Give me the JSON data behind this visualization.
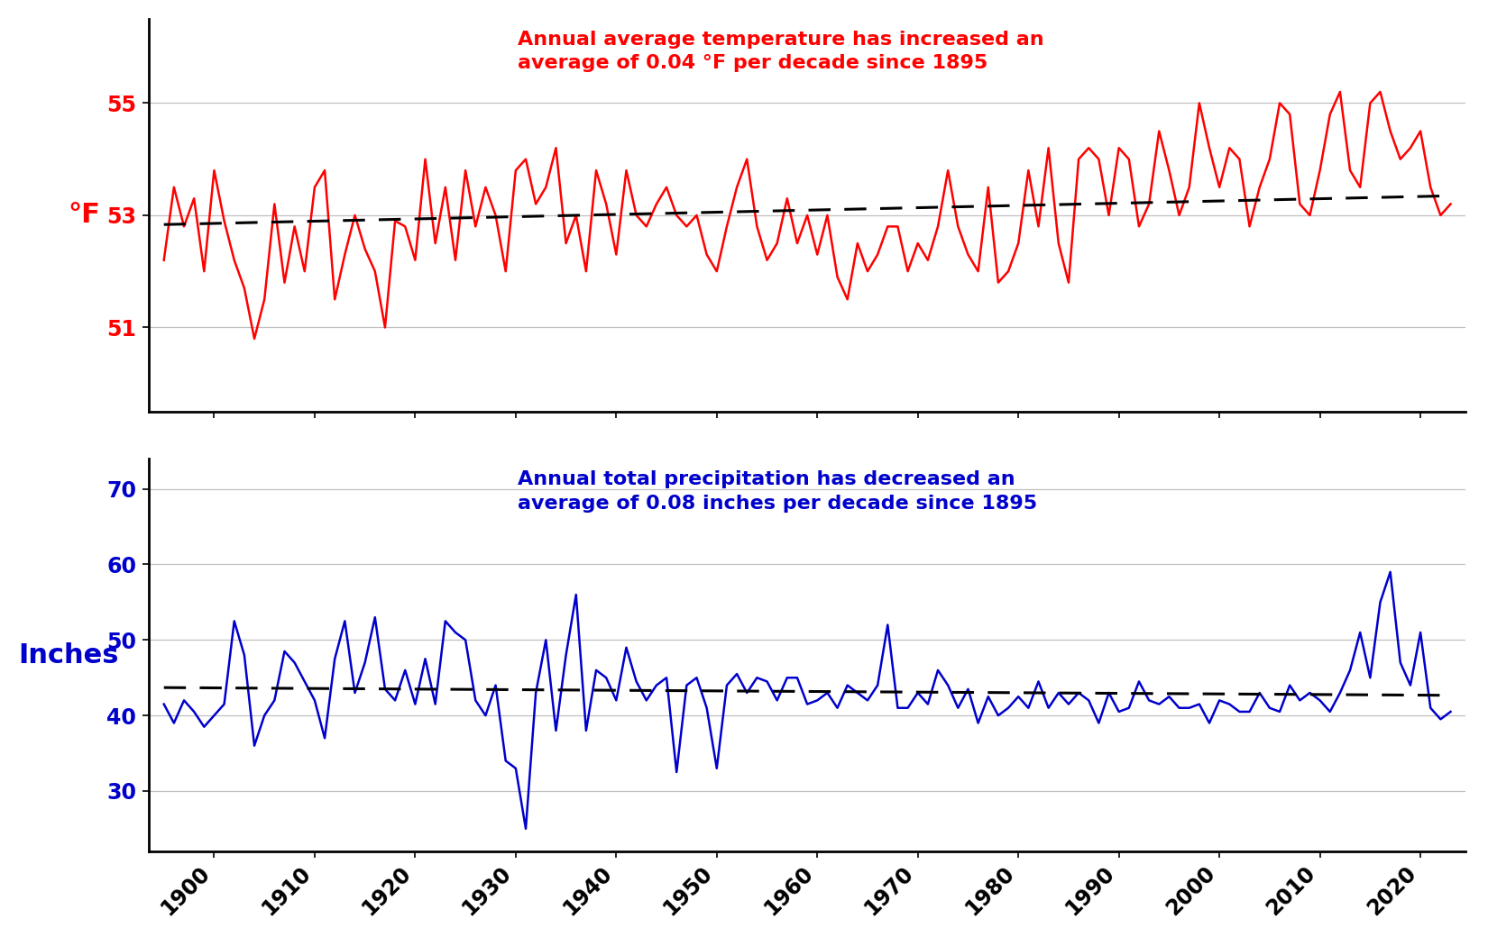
{
  "years": [
    1895,
    1896,
    1897,
    1898,
    1899,
    1900,
    1901,
    1902,
    1903,
    1904,
    1905,
    1906,
    1907,
    1908,
    1909,
    1910,
    1911,
    1912,
    1913,
    1914,
    1915,
    1916,
    1917,
    1918,
    1919,
    1920,
    1921,
    1922,
    1923,
    1924,
    1925,
    1926,
    1927,
    1928,
    1929,
    1930,
    1931,
    1932,
    1933,
    1934,
    1935,
    1936,
    1937,
    1938,
    1939,
    1940,
    1941,
    1942,
    1943,
    1944,
    1945,
    1946,
    1947,
    1948,
    1949,
    1950,
    1951,
    1952,
    1953,
    1954,
    1955,
    1956,
    1957,
    1958,
    1959,
    1960,
    1961,
    1962,
    1963,
    1964,
    1965,
    1966,
    1967,
    1968,
    1969,
    1970,
    1971,
    1972,
    1973,
    1974,
    1975,
    1976,
    1977,
    1978,
    1979,
    1980,
    1981,
    1982,
    1983,
    1984,
    1985,
    1986,
    1987,
    1988,
    1989,
    1990,
    1991,
    1992,
    1993,
    1994,
    1995,
    1996,
    1997,
    1998,
    1999,
    2000,
    2001,
    2002,
    2003,
    2004,
    2005,
    2006,
    2007,
    2008,
    2009,
    2010,
    2011,
    2012,
    2013,
    2014,
    2015,
    2016,
    2017,
    2018,
    2019,
    2020,
    2021,
    2022,
    2023
  ],
  "temp": [
    52.2,
    53.5,
    52.8,
    53.3,
    52.0,
    53.8,
    52.9,
    52.2,
    51.7,
    50.8,
    51.5,
    53.2,
    51.8,
    52.8,
    52.0,
    53.5,
    53.8,
    51.5,
    52.3,
    53.0,
    52.4,
    52.0,
    51.0,
    52.9,
    52.8,
    52.2,
    54.0,
    52.5,
    53.5,
    52.2,
    53.8,
    52.8,
    53.5,
    53.0,
    52.0,
    53.8,
    54.0,
    53.2,
    53.5,
    54.2,
    52.5,
    53.0,
    52.0,
    53.8,
    53.2,
    52.3,
    53.8,
    53.0,
    52.8,
    53.2,
    53.5,
    53.0,
    52.8,
    53.0,
    52.3,
    52.0,
    52.8,
    53.5,
    54.0,
    52.8,
    52.2,
    52.5,
    53.3,
    52.5,
    53.0,
    52.3,
    53.0,
    51.9,
    51.5,
    52.5,
    52.0,
    52.3,
    52.8,
    52.8,
    52.0,
    52.5,
    52.2,
    52.8,
    53.8,
    52.8,
    52.3,
    52.0,
    53.5,
    51.8,
    52.0,
    52.5,
    53.8,
    52.8,
    54.2,
    52.5,
    51.8,
    54.0,
    54.2,
    54.0,
    53.0,
    54.2,
    54.0,
    52.8,
    53.2,
    54.5,
    53.8,
    53.0,
    53.5,
    55.0,
    54.2,
    53.5,
    54.2,
    54.0,
    52.8,
    53.5,
    54.0,
    55.0,
    54.8,
    53.2,
    53.0,
    53.8,
    54.8,
    55.2,
    53.8,
    53.5,
    55.0,
    55.2,
    54.5,
    54.0,
    54.2,
    54.5,
    53.5,
    53.0,
    53.2
  ],
  "precip": [
    41.5,
    39.0,
    42.0,
    40.5,
    38.5,
    40.0,
    41.5,
    52.5,
    48.0,
    36.0,
    40.0,
    42.0,
    48.5,
    47.0,
    44.5,
    42.0,
    37.0,
    47.5,
    52.5,
    43.0,
    47.0,
    53.0,
    43.5,
    42.0,
    46.0,
    41.5,
    47.5,
    41.5,
    52.5,
    51.0,
    50.0,
    42.0,
    40.0,
    44.0,
    34.0,
    33.0,
    25.0,
    43.0,
    50.0,
    38.0,
    48.0,
    56.0,
    38.0,
    46.0,
    45.0,
    42.0,
    49.0,
    44.5,
    42.0,
    44.0,
    45.0,
    32.5,
    44.0,
    45.0,
    41.0,
    33.0,
    44.0,
    45.5,
    43.0,
    45.0,
    44.5,
    42.0,
    45.0,
    45.0,
    41.5,
    42.0,
    43.0,
    41.0,
    44.0,
    43.0,
    42.0,
    44.0,
    52.0,
    41.0,
    41.0,
    43.0,
    41.5,
    46.0,
    44.0,
    41.0,
    43.5,
    39.0,
    42.5,
    40.0,
    41.0,
    42.5,
    41.0,
    44.5,
    41.0,
    43.0,
    41.5,
    43.0,
    42.0,
    39.0,
    43.0,
    40.5,
    41.0,
    44.5,
    42.0,
    41.5,
    42.5,
    41.0,
    41.0,
    41.5,
    39.0,
    42.0,
    41.5,
    40.5,
    40.5,
    43.0,
    41.0,
    40.5,
    44.0,
    42.0,
    43.0,
    42.0,
    40.5,
    43.0,
    46.0,
    51.0,
    45.0,
    55.0,
    59.0,
    47.0,
    44.0,
    51.0,
    41.0,
    39.5,
    40.5
  ],
  "temp_color": "#FF0000",
  "precip_color": "#0000CC",
  "trend_color": "#000000",
  "temp_ylabel": "°F",
  "precip_ylabel": "Inches",
  "temp_annotation": "Annual average temperature has increased an\naverage of 0.04 °F per decade since 1895",
  "precip_annotation": "Annual total precipitation has decreased an\naverage of 0.08 inches per decade since 1895",
  "temp_yticks": [
    51,
    53,
    55
  ],
  "precip_yticks": [
    30,
    40,
    50,
    60,
    70
  ],
  "temp_ylim": [
    49.5,
    56.5
  ],
  "precip_ylim": [
    22,
    74
  ],
  "xlim": [
    1893.5,
    2024.5
  ],
  "xticks": [
    1900,
    1910,
    1920,
    1930,
    1940,
    1950,
    1960,
    1970,
    1980,
    1990,
    2000,
    2010,
    2020
  ],
  "annotation_fontsize": 16,
  "axis_label_fontsize": 22,
  "tick_fontsize": 17,
  "line_width": 1.8,
  "trend_linewidth": 2.2,
  "background_color": "#FFFFFF",
  "temp_trend_slope": 0.004,
  "precip_trend_slope": -0.008
}
